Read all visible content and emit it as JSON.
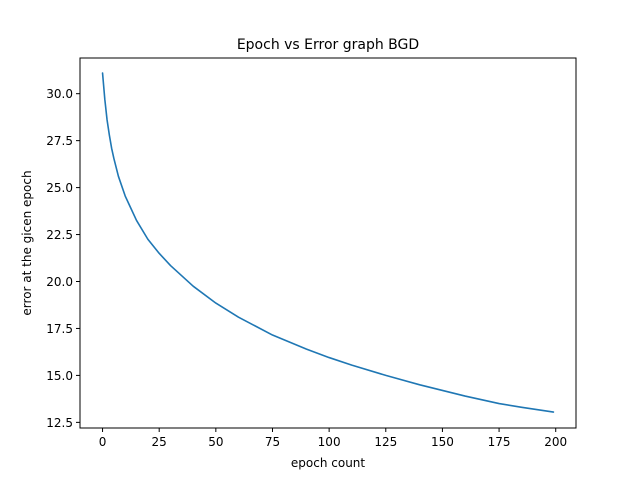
{
  "chart_data": {
    "type": "line",
    "title": "Epoch vs Error graph BGD",
    "xlabel": "epoch count",
    "ylabel": "error at the gicen epoch",
    "xlim": [
      -9.95,
      208.95
    ],
    "ylim": [
      12.2,
      31.9
    ],
    "xticks": [
      0,
      25,
      50,
      75,
      100,
      125,
      150,
      175,
      200
    ],
    "yticks": [
      12.5,
      15.0,
      17.5,
      20.0,
      22.5,
      25.0,
      27.5,
      30.0
    ],
    "xtick_labels": [
      "0",
      "25",
      "50",
      "75",
      "100",
      "125",
      "150",
      "175",
      "200"
    ],
    "ytick_labels": [
      "12.5",
      "15.0",
      "17.5",
      "20.0",
      "22.5",
      "25.0",
      "27.5",
      "30.0"
    ],
    "grid": false,
    "line_color": "#1f77b4",
    "series": [
      {
        "x": [
          0,
          1,
          2,
          3,
          4,
          5,
          7,
          10,
          15,
          20,
          25,
          30,
          40,
          50,
          60,
          75,
          90,
          100,
          110,
          125,
          140,
          150,
          160,
          175,
          185,
          199
        ],
        "y": [
          31.1,
          29.7,
          28.6,
          27.8,
          27.1,
          26.55,
          25.6,
          24.55,
          23.25,
          22.25,
          21.5,
          20.85,
          19.75,
          18.85,
          18.1,
          17.15,
          16.4,
          15.95,
          15.55,
          15.0,
          14.5,
          14.2,
          13.9,
          13.5,
          13.3,
          13.05
        ]
      }
    ]
  }
}
